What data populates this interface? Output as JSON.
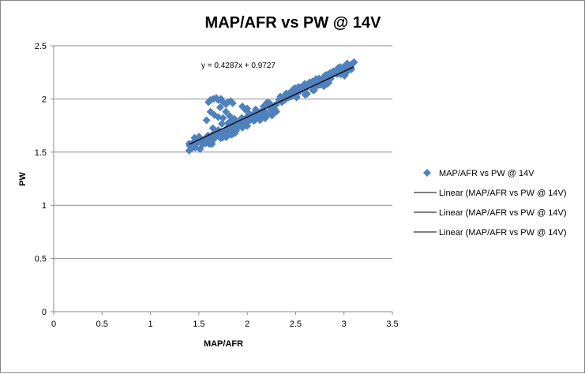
{
  "chart_data": {
    "type": "scatter",
    "title": "MAP/AFR vs PW @ 14V",
    "xlabel": "MAP/AFR",
    "ylabel": "PW",
    "xlim": [
      0,
      3.5
    ],
    "ylim": [
      0,
      2.5
    ],
    "xticks": [
      "0",
      "0.5",
      "1",
      "1.5",
      "2",
      "2.5",
      "3",
      "3.5"
    ],
    "yticks": [
      "0",
      "0.5",
      "1",
      "1.5",
      "2",
      "2.5"
    ],
    "grid": true,
    "legend_position": "right",
    "series": [
      {
        "name": "MAP/AFR vs PW @ 14V",
        "marker": "diamond",
        "color": "#4F81BD",
        "clusters": [
          {
            "x_from": 1.4,
            "x_to": 3.1,
            "y_line": [
              0.4287,
              0.9727
            ],
            "y_lo": -0.05,
            "y_hi": 0.05
          },
          {
            "x_from": 1.4,
            "x_to": 2.3,
            "y_line": [
              0.4287,
              0.9727
            ],
            "y_lo": -0.1,
            "y_hi": 0.0
          },
          {
            "x_from": 2.4,
            "x_to": 3.1,
            "y_line": [
              0.4287,
              0.9727
            ],
            "y_lo": 0.0,
            "y_hi": 0.06
          }
        ],
        "outliers": [
          [
            1.6,
            1.97
          ],
          [
            1.62,
            1.99
          ],
          [
            1.65,
            2.0
          ],
          [
            1.68,
            2.01
          ],
          [
            1.7,
            1.99
          ],
          [
            1.73,
            2.0
          ],
          [
            1.75,
            1.97
          ],
          [
            1.78,
            1.95
          ],
          [
            1.8,
            1.97
          ],
          [
            1.83,
            1.98
          ],
          [
            1.85,
            1.96
          ],
          [
            1.72,
            1.92
          ],
          [
            1.78,
            1.88
          ],
          [
            1.82,
            1.84
          ],
          [
            1.86,
            1.8
          ],
          [
            1.75,
            1.82
          ],
          [
            1.95,
            1.93
          ],
          [
            1.98,
            1.9
          ],
          [
            2.0,
            1.91
          ],
          [
            1.62,
            1.88
          ],
          [
            1.66,
            1.85
          ],
          [
            1.7,
            1.83
          ],
          [
            2.02,
            1.86
          ],
          [
            1.58,
            1.8
          ]
        ]
      }
    ],
    "trendline": {
      "name": "Linear (MAP/AFR vs PW @ 14V)",
      "slope": 0.4287,
      "intercept": 0.9727,
      "x_range": [
        1.4,
        3.1
      ],
      "equation": "y = 0.4287x + 0.9727",
      "color": "#000000"
    },
    "legend": [
      "MAP/AFR vs PW @ 14V",
      "Linear (MAP/AFR vs PW @ 14V)",
      "Linear (MAP/AFR vs PW @ 14V)",
      "Linear (MAP/AFR vs PW @ 14V)"
    ]
  }
}
